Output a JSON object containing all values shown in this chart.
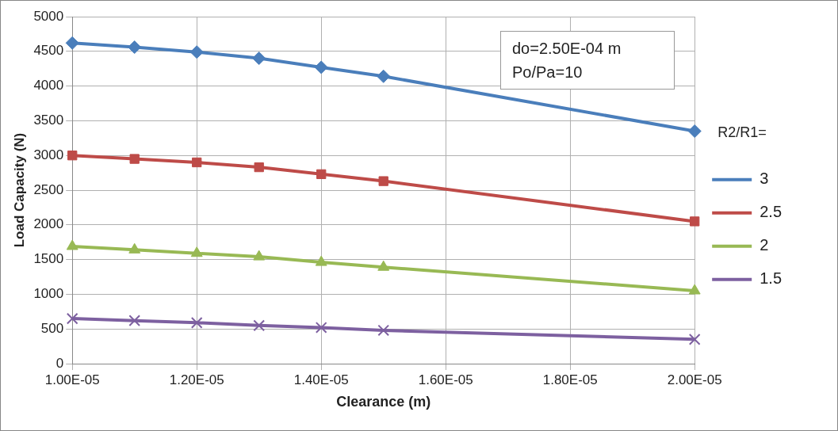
{
  "chart_data": {
    "type": "line",
    "xlabel": "Clearance (m)",
    "ylabel": "Load Capacity (N)",
    "legend_title": "R2/R1=",
    "legend": "right",
    "grid": true,
    "annotations": [
      "do=2.50E-04 m",
      "Po/Pa=10"
    ],
    "x": [
      1e-05,
      1.1e-05,
      1.2e-05,
      1.3e-05,
      1.4e-05,
      1.5e-05,
      2e-05
    ],
    "xlim": [
      1e-05,
      2e-05
    ],
    "xticks": [
      {
        "value": 1e-05,
        "label": "1.00E-05"
      },
      {
        "value": 1.2e-05,
        "label": "1.20E-05"
      },
      {
        "value": 1.4e-05,
        "label": "1.40E-05"
      },
      {
        "value": 1.6e-05,
        "label": "1.60E-05"
      },
      {
        "value": 1.8e-05,
        "label": "1.80E-05"
      },
      {
        "value": 2e-05,
        "label": "2.00E-05"
      }
    ],
    "ylim": [
      0,
      5000
    ],
    "yticks": [
      0,
      500,
      1000,
      1500,
      2000,
      2500,
      3000,
      3500,
      4000,
      4500,
      5000
    ],
    "series": [
      {
        "name": "3",
        "color": "#4a7ebb",
        "marker": "diamond",
        "values": [
          4620,
          4560,
          4490,
          4400,
          4270,
          4140,
          3350
        ]
      },
      {
        "name": "2.5",
        "color": "#be4b48",
        "marker": "square",
        "values": [
          3000,
          2950,
          2900,
          2830,
          2730,
          2630,
          2050
        ]
      },
      {
        "name": "2",
        "color": "#98b954",
        "marker": "triangle",
        "values": [
          1690,
          1640,
          1590,
          1540,
          1460,
          1390,
          1050
        ]
      },
      {
        "name": "1.5",
        "color": "#7d60a0",
        "marker": "cross",
        "values": [
          650,
          620,
          590,
          550,
          520,
          480,
          350
        ]
      }
    ]
  }
}
